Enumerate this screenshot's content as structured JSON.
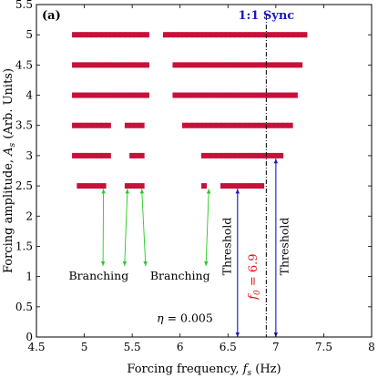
{
  "chart_data": {
    "type": "scatter",
    "panel_label": "(a)",
    "xlabel": "Forcing frequency, f_s (Hz)",
    "ylabel": "Forcing amplitude, A_s (Arb. Units)",
    "xlim": [
      4.5,
      8
    ],
    "ylim": [
      0,
      5.5
    ],
    "xticks": [
      4.5,
      5,
      5.5,
      6,
      6.5,
      7,
      7.5,
      8
    ],
    "xtick_labels": [
      "4.5",
      "5",
      "5.5",
      "6",
      "6.5",
      "7",
      "7.5",
      "8"
    ],
    "yticks": [
      0,
      0.5,
      1,
      1.5,
      2,
      2.5,
      3,
      3.5,
      4,
      4.5,
      5,
      5.5
    ],
    "ytick_labels": [
      "0",
      "0.5",
      "1",
      "1.5",
      "2",
      "2.5",
      "3",
      "3.5",
      "4",
      "4.5",
      "5",
      "5.5"
    ],
    "grid": false,
    "marker_color": "#c8103a",
    "series": [
      {
        "points": [
          {
            "A": 5,
            "f": [
              4.9,
              4.95,
              5.0,
              5.05,
              5.1,
              5.15,
              5.2,
              5.25,
              5.3,
              5.35,
              5.4,
              5.45,
              5.5,
              5.55,
              5.6,
              5.65,
              5.85,
              5.9,
              5.95,
              6.0,
              6.05,
              6.1,
              6.15,
              6.2,
              6.25,
              6.3,
              6.35,
              6.4,
              6.45,
              6.5,
              6.55,
              6.6,
              6.65,
              6.7,
              6.75,
              6.8,
              6.85,
              6.9,
              6.95,
              7.0,
              7.05,
              7.1,
              7.15,
              7.2,
              7.25,
              7.3
            ]
          },
          {
            "A": 4.5,
            "f": [
              4.9,
              4.95,
              5.0,
              5.05,
              5.1,
              5.15,
              5.2,
              5.25,
              5.3,
              5.35,
              5.4,
              5.45,
              5.5,
              5.55,
              5.6,
              5.65,
              5.95,
              6.0,
              6.05,
              6.1,
              6.15,
              6.2,
              6.25,
              6.3,
              6.35,
              6.4,
              6.45,
              6.5,
              6.55,
              6.6,
              6.65,
              6.7,
              6.75,
              6.8,
              6.85,
              6.9,
              6.95,
              7.0,
              7.05,
              7.1,
              7.15,
              7.2,
              7.25
            ]
          },
          {
            "A": 4,
            "f": [
              4.9,
              4.95,
              5.0,
              5.05,
              5.1,
              5.15,
              5.2,
              5.25,
              5.3,
              5.35,
              5.4,
              5.45,
              5.5,
              5.55,
              5.6,
              5.65,
              5.95,
              6.0,
              6.05,
              6.1,
              6.15,
              6.2,
              6.25,
              6.3,
              6.35,
              6.4,
              6.45,
              6.5,
              6.55,
              6.6,
              6.65,
              6.7,
              6.75,
              6.8,
              6.85,
              6.9,
              6.95,
              7.0,
              7.05,
              7.1,
              7.15,
              7.2
            ]
          },
          {
            "A": 3.5,
            "f": [
              4.9,
              4.95,
              5.0,
              5.05,
              5.1,
              5.15,
              5.2,
              5.25,
              5.45,
              5.5,
              5.55,
              5.6,
              6.05,
              6.1,
              6.15,
              6.2,
              6.25,
              6.3,
              6.35,
              6.4,
              6.45,
              6.5,
              6.55,
              6.6,
              6.65,
              6.7,
              6.75,
              6.8,
              6.85,
              6.9,
              6.95,
              7.0,
              7.05,
              7.1,
              7.15
            ]
          },
          {
            "A": 3,
            "f": [
              4.9,
              4.95,
              5.0,
              5.05,
              5.1,
              5.15,
              5.2,
              5.25,
              5.5,
              5.55,
              5.6,
              6.25,
              6.3,
              6.35,
              6.4,
              6.45,
              6.5,
              6.55,
              6.6,
              6.65,
              6.7,
              6.75,
              6.8,
              6.85,
              6.9,
              6.95,
              7.0,
              7.05
            ]
          },
          {
            "A": 2.5,
            "f": [
              4.95,
              5.0,
              5.05,
              5.1,
              5.15,
              5.2,
              5.45,
              5.5,
              5.55,
              5.6,
              6.25,
              6.45,
              6.5,
              6.55,
              6.6,
              6.65,
              6.7,
              6.75,
              6.8,
              6.85
            ]
          }
        ]
      }
    ],
    "sync_line": {
      "x": 6.9,
      "label": "1:1 Sync",
      "color": "#1a1ab8"
    },
    "f0_label": {
      "text": "f_0 = 6.9",
      "x": 6.8,
      "y": 1.0
    },
    "branching": [
      {
        "label": "Branching",
        "label_at": [
          5.15,
          0.95
        ],
        "targets": [
          [
            5.2,
            2.45
          ],
          [
            5.45,
            2.45
          ]
        ]
      },
      {
        "label": "Branching",
        "label_at": [
          6.0,
          0.95
        ],
        "targets": [
          [
            5.6,
            2.45
          ],
          [
            6.3,
            2.45
          ]
        ]
      }
    ],
    "branching_color": "#22cc22",
    "thresholds": [
      {
        "label": "Threshold",
        "x": 6.6,
        "y_top": 2.45,
        "label_x": 6.53
      },
      {
        "label": "Threshold",
        "x": 7.0,
        "y_top": 2.95,
        "label_x": 7.13
      }
    ],
    "threshold_color": "#1a1ab8",
    "eta_label": {
      "text": "η = 0.005",
      "x": 6.05,
      "y": 0.25
    }
  }
}
